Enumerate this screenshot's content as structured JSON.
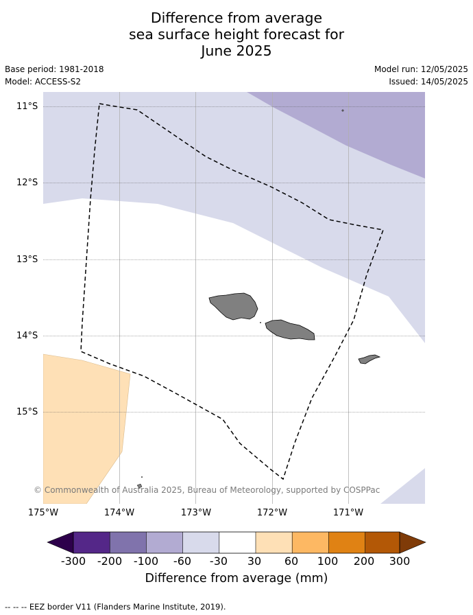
{
  "header": {
    "title_lines": [
      "Difference from average",
      "sea surface height forecast for",
      "June 2025"
    ],
    "base_period": "Base period: 1981-2018",
    "model": "Model: ACCESS-S2",
    "model_run": "Model run: 12/05/2025",
    "issued": "Issued: 14/05/2025"
  },
  "map": {
    "lat_labels": [
      "11°S",
      "12°S",
      "13°S",
      "14°S",
      "15°S"
    ],
    "lon_labels": [
      "175°W",
      "174°W",
      "173°W",
      "172°W",
      "171°W"
    ],
    "copyright": "© Commonwealth of Australia 2025, Bureau of Meteorology, supported by COSPPac",
    "land_color": "#808080",
    "eez_line_style": "dashed"
  },
  "colorbar": {
    "tick_labels": [
      "-300",
      "-200",
      "-100",
      "-60",
      "-30",
      "30",
      "60",
      "100",
      "200",
      "300"
    ],
    "colors": [
      "#2d004b",
      "#542788",
      "#8073ac",
      "#b2abd2",
      "#d8daeb",
      "#ffffff",
      "#fee0b6",
      "#fdb863",
      "#e08214",
      "#b35806",
      "#7f3b08"
    ],
    "label": "Difference from average (mm)"
  },
  "footer": {
    "legend_note": "--  --  -- EEZ border V11 (Flanders Marine Institute, 2019)."
  }
}
